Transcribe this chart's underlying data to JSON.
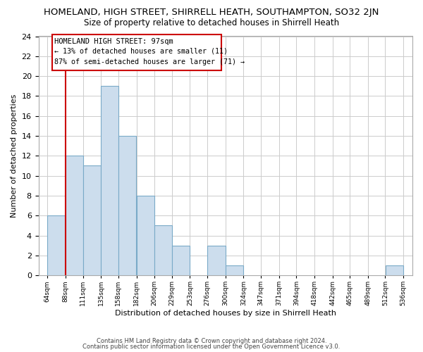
{
  "title": "HOMELAND, HIGH STREET, SHIRRELL HEATH, SOUTHAMPTON, SO32 2JN",
  "subtitle": "Size of property relative to detached houses in Shirrell Heath",
  "xlabel": "Distribution of detached houses by size in Shirrell Heath",
  "ylabel": "Number of detached properties",
  "footer_line1": "Contains HM Land Registry data © Crown copyright and database right 2024.",
  "footer_line2": "Contains public sector information licensed under the Open Government Licence v3.0.",
  "annotation_title": "HOMELAND HIGH STREET: 97sqm",
  "annotation_line2": "← 13% of detached houses are smaller (11)",
  "annotation_line3": "87% of semi-detached houses are larger (71) →",
  "bar_color": "#ccdded",
  "bar_edge_color": "#7aaac8",
  "ref_line_color": "#cc0000",
  "bins": [
    64,
    88,
    111,
    135,
    158,
    182,
    206,
    229,
    253,
    276,
    300,
    324,
    347,
    371,
    394,
    418,
    442,
    465,
    489,
    512,
    536
  ],
  "counts": [
    6,
    12,
    11,
    19,
    14,
    8,
    5,
    3,
    0,
    3,
    1,
    0,
    0,
    0,
    0,
    0,
    0,
    0,
    0,
    1
  ],
  "ylim": [
    0,
    24
  ],
  "yticks": [
    0,
    2,
    4,
    6,
    8,
    10,
    12,
    14,
    16,
    18,
    20,
    22,
    24
  ],
  "grid_color": "#cccccc",
  "background_color": "#ffffff",
  "ann_box_edgecolor": "#cc0000",
  "ann_box_facecolor": "#ffffff"
}
